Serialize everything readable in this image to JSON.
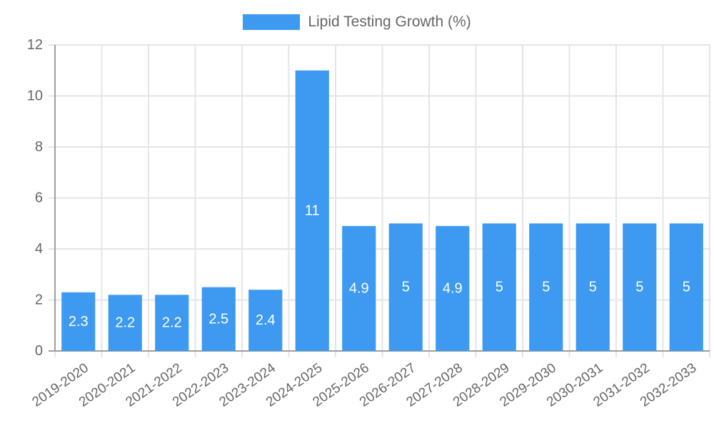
{
  "chart_data": {
    "type": "bar",
    "title": "",
    "legend_label": "Lipid Testing Growth (%)",
    "legend_position": "top-center",
    "categories": [
      "2019-2020",
      "2020-2021",
      "2021-2022",
      "2022-2023",
      "2023-2024",
      "2024-2025",
      "2025-2026",
      "2026-2027",
      "2027-2028",
      "2028-2029",
      "2029-2030",
      "2030-2031",
      "2031-2032",
      "2032-2033"
    ],
    "values": [
      2.3,
      2.2,
      2.2,
      2.5,
      2.4,
      11,
      4.9,
      5,
      4.9,
      5,
      5,
      5,
      5,
      5
    ],
    "bar_labels": [
      "2.3",
      "2.2",
      "2.2",
      "2.5",
      "2.4",
      "11",
      "4.9",
      "5",
      "4.9",
      "5",
      "5",
      "5",
      "5",
      "5"
    ],
    "xlabel": "",
    "ylabel": "",
    "ylim": [
      0,
      12
    ],
    "y_ticks": [
      0,
      2,
      4,
      6,
      8,
      10,
      12
    ],
    "grid": true,
    "x_label_rotation_deg": -35,
    "colors": {
      "bar": "#3D9AF0",
      "bar_label_text": "#FFFFFF",
      "tick_text": "#666666",
      "legend_text": "#666666",
      "gridline": "#E5E5E5",
      "axis_line": "#9E9E9E",
      "background": "#FFFFFF"
    }
  }
}
